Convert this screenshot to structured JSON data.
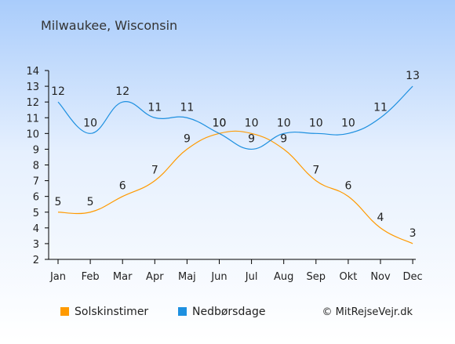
{
  "location": "Milwaukee, Wisconsin",
  "credit": "© MitRejseVejr.dk",
  "chart_data": {
    "type": "line",
    "categories": [
      "Jan",
      "Feb",
      "Mar",
      "Apr",
      "Maj",
      "Jun",
      "Jul",
      "Aug",
      "Sep",
      "Okt",
      "Nov",
      "Dec"
    ],
    "ylim": [
      2,
      14
    ],
    "yticks": [
      2,
      3,
      4,
      5,
      6,
      7,
      8,
      9,
      10,
      11,
      12,
      13,
      14
    ],
    "grid": false,
    "legend": "bottom",
    "series": [
      {
        "name": "Solskinstimer",
        "color": "#ff9a00",
        "values": [
          5,
          5,
          6,
          7,
          9,
          10,
          10,
          9,
          7,
          6,
          4,
          3
        ]
      },
      {
        "name": "Nedbørsdage",
        "color": "#1e90e0",
        "values": [
          12,
          10,
          12,
          11,
          11,
          10,
          9,
          10,
          10,
          10,
          11,
          13
        ]
      }
    ]
  }
}
